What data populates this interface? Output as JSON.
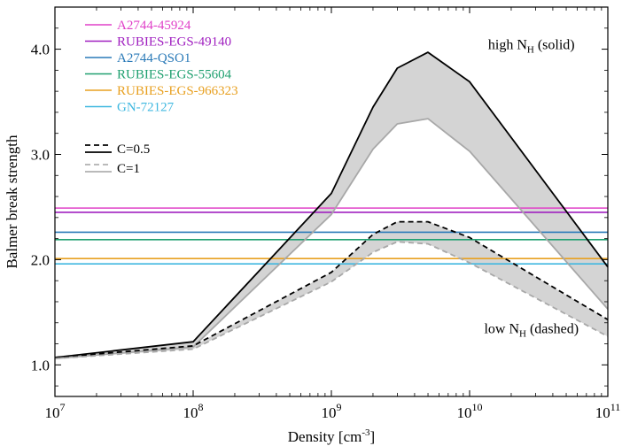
{
  "chart_data": {
    "type": "line",
    "xscale": "log",
    "xlabel": "Density [cm",
    "xlabel_sup": "-3",
    "xlabel_end": "]",
    "ylabel": "Balmer break strength",
    "xlim": [
      10000000,
      100000000000
    ],
    "ylim": [
      0.7,
      4.4
    ],
    "x_ticks": [
      {
        "value": 10000000,
        "base": "10",
        "exp": "7"
      },
      {
        "value": 100000000,
        "base": "10",
        "exp": "8"
      },
      {
        "value": 1000000000,
        "base": "10",
        "exp": "9"
      },
      {
        "value": 10000000000,
        "base": "10",
        "exp": "10"
      },
      {
        "value": 100000000000,
        "base": "10",
        "exp": "11"
      }
    ],
    "y_ticks": [
      {
        "value": 1.0,
        "label": "1.0"
      },
      {
        "value": 2.0,
        "label": "2.0"
      },
      {
        "value": 3.0,
        "label": "3.0"
      },
      {
        "value": 4.0,
        "label": "4.0"
      }
    ],
    "observed_lines": [
      {
        "name": "A2744-45924",
        "value": 2.49,
        "color": "#e040c8"
      },
      {
        "name": "RUBIES-EGS-49140",
        "value": 2.45,
        "color": "#a020c0"
      },
      {
        "name": "A2744-QSO1",
        "value": 2.26,
        "color": "#2a7ab8"
      },
      {
        "name": "RUBIES-EGS-55604",
        "value": 2.19,
        "color": "#20a070"
      },
      {
        "name": "RUBIES-EGS-966323",
        "value": 2.01,
        "color": "#e8a020"
      },
      {
        "name": "GN-72127",
        "value": 1.96,
        "color": "#40b8e0"
      }
    ],
    "model_legend": [
      {
        "label": "C=0.5",
        "color": "#000000"
      },
      {
        "label": "C=1",
        "color": "#b0b0b0"
      }
    ],
    "model_series": [
      {
        "name": "high N_H, C=0.5",
        "style": "solid",
        "color": "#000000",
        "x": [
          10000000,
          100000000,
          1000000000,
          2000000000,
          3000000000,
          5000000000,
          10000000000,
          100000000000
        ],
        "y": [
          1.07,
          1.22,
          2.63,
          3.45,
          3.82,
          3.97,
          3.69,
          1.93
        ]
      },
      {
        "name": "high N_H, C=1",
        "style": "solid",
        "color": "#a8a8a8",
        "x": [
          10000000,
          100000000,
          1000000000,
          2000000000,
          3000000000,
          5000000000,
          10000000000,
          100000000000
        ],
        "y": [
          1.06,
          1.17,
          2.43,
          3.05,
          3.29,
          3.34,
          3.03,
          1.53
        ]
      },
      {
        "name": "low N_H, C=0.5",
        "style": "dashed",
        "color": "#000000",
        "x": [
          10000000,
          100000000,
          1000000000,
          2000000000,
          3000000000,
          5000000000,
          10000000000,
          100000000000
        ],
        "y": [
          1.07,
          1.18,
          1.88,
          2.24,
          2.36,
          2.36,
          2.21,
          1.43
        ]
      },
      {
        "name": "low N_H, C=1",
        "style": "dashed",
        "color": "#a8a8a8",
        "x": [
          10000000,
          100000000,
          1000000000,
          2000000000,
          3000000000,
          5000000000,
          10000000000,
          100000000000
        ],
        "y": [
          1.06,
          1.15,
          1.79,
          2.07,
          2.17,
          2.15,
          1.97,
          1.27
        ]
      }
    ],
    "annotations": [
      {
        "id": "high",
        "pre": "high N",
        "sub": "H",
        "post": " (solid)",
        "x": 28000000000,
        "y": 4.0
      },
      {
        "id": "low",
        "pre": "low N",
        "sub": "H",
        "post": " (dashed)",
        "x": 28000000000,
        "y": 1.3
      }
    ]
  }
}
